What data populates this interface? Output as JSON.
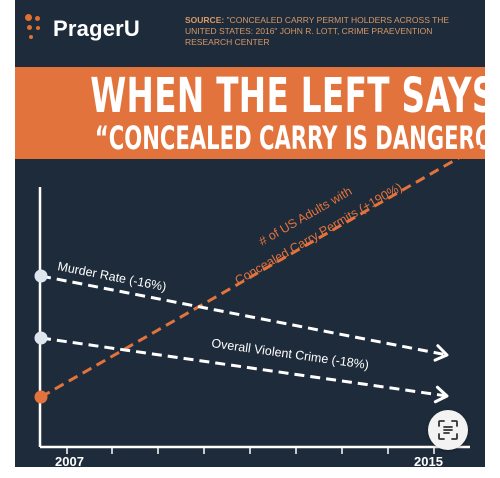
{
  "brand": {
    "name": "PragerU",
    "accent": "#e36f2f"
  },
  "source": {
    "label": "SOURCE:",
    "text": "\"CONCEALED CARRY PERMIT HOLDERS ACROSS THE UNITED STATES: 2016\" JOHN R. LOTT, CRIME PRAEVENTION RESEARCH CENTER"
  },
  "banner": {
    "headline": "WHEN THE LEFT SAYS",
    "subheadline": "“CONCEALED CARRY IS DANGEROUS”"
  },
  "chart_data": {
    "type": "line",
    "x_tick_labels": [
      "2007",
      "2015"
    ],
    "series": [
      {
        "name": "# of US Adults with Concealed Carry Permits (+190%)",
        "label_line1": "# of US Adults with",
        "label_line2": "Concealed Carry Permits (+190%)",
        "change_pct": 190,
        "style": "dashed",
        "color": "#e3733c",
        "start_marker": true,
        "arrow": false
      },
      {
        "name": "Murder Rate (-16%)",
        "label": "Murder Rate (-16%)",
        "change_pct": -16,
        "style": "dashed",
        "color": "#ffffff",
        "start_marker": true,
        "arrow": true
      },
      {
        "name": "Overall Violent Crime (-18%)",
        "label": "Overall Violent Crime (-18%)",
        "change_pct": -18,
        "style": "dashed",
        "color": "#ffffff",
        "start_marker": true,
        "arrow": true
      }
    ],
    "grid": false,
    "title": "",
    "xlabel": "",
    "ylabel": ""
  },
  "overlay": {
    "icon": "text-scan-icon"
  }
}
